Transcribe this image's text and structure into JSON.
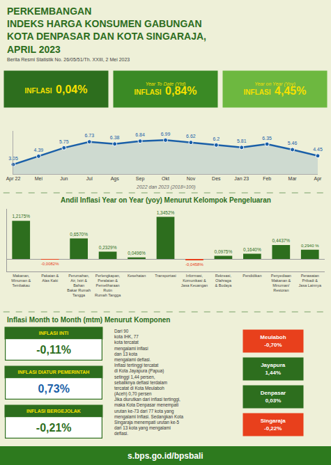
{
  "chart_data": [
    {
      "type": "line",
      "title": "PERKEMBANGAN\nINDEKS HARGA KONSUMEN GABUNGAN\nKOTA DENPASAR DAN KOTA SINGARAJA,\nAPRIL 2023",
      "subtitle": "Berita Resmi Statistik No. 26/05/51/Th. XXIII, 2 Mei 2023",
      "annotations": [
        "INFLASI 0,04%",
        "Year To Date (Ytd)\nINFLASI 0,84%",
        "Year on Year (Yoy)\nINFLASI 4,45%",
        "2022 dan 2023 (2018=100)"
      ],
      "categories": [
        "Apr 22",
        "Mei",
        "Jun",
        "Jul",
        "Ags",
        "Sep",
        "Okt",
        "Nov",
        "Des",
        "Jan 23",
        "Feb",
        "Mar",
        "Apr"
      ],
      "values": [
        3.05,
        4.39,
        5.75,
        6.73,
        6.38,
        6.84,
        6.99,
        6.62,
        6.2,
        5.81,
        6.35,
        5.46,
        4.45
      ],
      "color": "#1a5fa8",
      "ylim": [
        1.5,
        8.5
      ],
      "data_labels": true,
      "tick_labels": "x",
      "grid": false
    },
    {
      "type": "bar",
      "title": "Andil Inflasi Year on Year (yoy) Menurut Kelompok Pengeluaran",
      "annotations": [
        "Inflasi Month to Month (mtm) Menurut Komponen",
        "INFLASI INTI\n-0,11%",
        "INFLASI DIATUR PEMERINTAH\n0,73%",
        "INFLASI BERGEJOLAK\n-0,21%",
        "Dari 90\nkota IHK, 77\nkota tercatat\nmengalami inflasi\ndan 13 kota\nmengalami deflasi.\nInflasi tertinggi tercatat\ndi Kota Jayapura (Papua)\nsetinggi 1,44 persen,\nsebaliknya deflasi terdalam\ntercatat di Kota Meulaboh\n(Aceh) 0,70 persen\nJika diurutkan dari inflasi tertinggi,\nmaka Kota Denpasar menempati\nurutan ke-73 dari 77 kota yang\nmengalami Inflasi. Sedangkan Kota\nSingaraja menempati urutan ke-5\ndari 13 kota yang mengalami\ndeflasi.",
        "Meulaboh\n-0,70%",
        "Jayapura\n1,44%",
        "Denpasar\n0,03%",
        "Singaraja\n-0,22%",
        "s.bps.go.id/bpsbali"
      ],
      "categories": [
        "Makanan,\nMinuman &\nTembakau",
        "Pakaian &\nAlas Kaki",
        "Perumahan,\nAir, Istri &\nBahan\nBakar Rumah\nTangga",
        "Perlengkapan,\nPeralatan &\nPemeliharaan\nRutin\nRumah Tangga",
        "Kesehatan",
        "Transportasi",
        "Informasi,\nKomunikasi &\nJasa Keuangan",
        "Rekreasi,\nOlahraga\n& Budaya",
        "Pendidikan",
        "Penyediaan\nMakanan &\nMinuman/\nRestoran",
        "Perawatan\nPribadi &\nJasa Lainnya"
      ],
      "values": [
        1.2175,
        -0.0082,
        0.657,
        0.2329,
        0.0496,
        1.3452,
        -0.0458,
        0.0975,
        0.164,
        0.4437,
        0.294
      ],
      "value_labels": [
        "1,2175%",
        "-0,0082%",
        "0,6570%",
        "0,2329%",
        "0,0496%",
        "1,3452%",
        "-0,0458%",
        "0,0975%",
        "0,1640%",
        "0,4437%",
        "0,2940 %"
      ],
      "colors": [
        "#2d6e1e",
        "#e8401c",
        "#2d6e1e",
        "#2d6e1e",
        "#2d6e1e",
        "#2d6e1e",
        "#e8401c",
        "#2d6e1e",
        "#2d6e1e",
        "#2d6e1e",
        "#2d6e1e"
      ],
      "ylim": [
        -0.4,
        1.6
      ],
      "data_labels": true,
      "tick_labels": "x",
      "grid": false
    }
  ]
}
